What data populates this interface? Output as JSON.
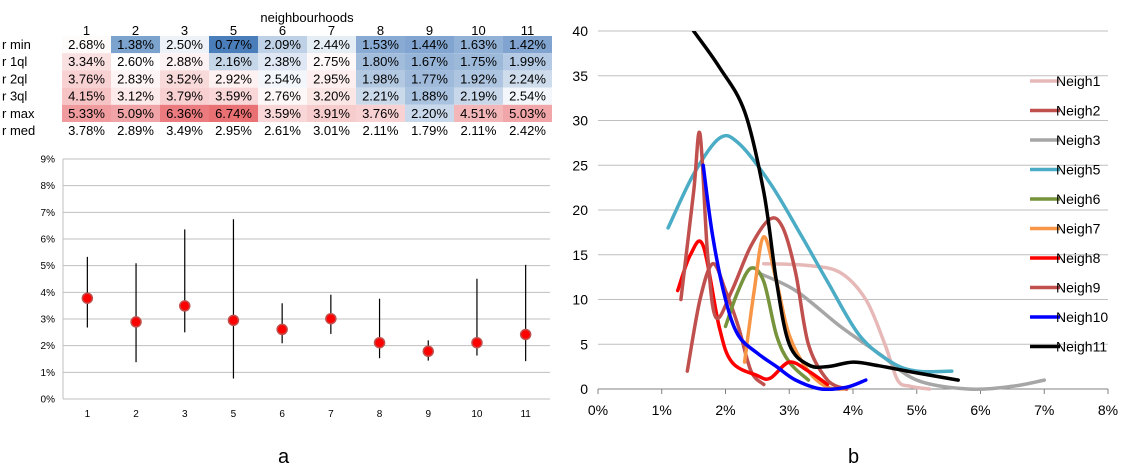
{
  "panel_labels": {
    "a": "a",
    "b": "b"
  },
  "chart_data": [
    {
      "type": "table",
      "title": "neighbourhoods",
      "columns": [
        "1",
        "2",
        "3",
        "5",
        "6",
        "7",
        "8",
        "9",
        "10",
        "11"
      ],
      "rows": [
        {
          "label": "r min",
          "values": [
            2.68,
            1.38,
            2.5,
            0.77,
            2.09,
            2.44,
            1.53,
            1.44,
            1.63,
            1.42
          ]
        },
        {
          "label": "r 1ql",
          "values": [
            3.34,
            2.6,
            2.88,
            2.16,
            2.38,
            2.75,
            1.8,
            1.67,
            1.75,
            1.99
          ]
        },
        {
          "label": "r 2ql",
          "values": [
            3.76,
            2.83,
            3.52,
            2.92,
            2.54,
            2.95,
            1.98,
            1.77,
            1.92,
            2.24
          ]
        },
        {
          "label": "r 3ql",
          "values": [
            4.15,
            3.12,
            3.79,
            3.59,
            2.76,
            3.2,
            2.21,
            1.88,
            2.19,
            2.54
          ]
        },
        {
          "label": "r max",
          "values": [
            5.33,
            5.09,
            6.36,
            6.74,
            3.59,
            3.91,
            3.76,
            2.2,
            4.51,
            5.03
          ]
        },
        {
          "label": "r med",
          "values": [
            3.78,
            2.89,
            3.49,
            2.95,
            2.61,
            3.01,
            2.11,
            1.79,
            2.11,
            2.42
          ]
        }
      ],
      "value_suffix": "%",
      "colors": {
        "low": "#4a7ebb",
        "high": "#e8686c",
        "neutral": "#ffffff"
      }
    },
    {
      "type": "scatter",
      "subtype": "range-dot",
      "categories": [
        "1",
        "2",
        "3",
        "5",
        "6",
        "7",
        "8",
        "9",
        "10",
        "11"
      ],
      "min": [
        2.68,
        1.38,
        2.5,
        0.77,
        2.09,
        2.44,
        1.53,
        1.44,
        1.63,
        1.42
      ],
      "max": [
        5.33,
        5.09,
        6.36,
        6.74,
        3.59,
        3.91,
        3.76,
        2.2,
        4.51,
        5.03
      ],
      "median": [
        3.78,
        2.89,
        3.49,
        2.95,
        2.61,
        3.01,
        2.11,
        1.79,
        2.11,
        2.42
      ],
      "ylim": [
        0,
        9
      ],
      "yticks": [
        "0%",
        "1%",
        "2%",
        "3%",
        "4%",
        "5%",
        "6%",
        "7%",
        "8%",
        "9%"
      ],
      "grid": true,
      "colors": {
        "dot": "#ff0000",
        "dot_edge": "#c0504d",
        "whisker": "#000000",
        "grid": "#bfbfbf"
      }
    },
    {
      "type": "line",
      "xlim": [
        0,
        8
      ],
      "ylim": [
        0,
        40
      ],
      "xticks": [
        "0%",
        "1%",
        "2%",
        "3%",
        "4%",
        "5%",
        "6%",
        "7%",
        "8%"
      ],
      "yticks": [
        "0",
        "5",
        "10",
        "15",
        "20",
        "25",
        "30",
        "35",
        "40"
      ],
      "grid": true,
      "legend": "right",
      "series": [
        {
          "name": "Neigh1",
          "color": "#e6b9b8",
          "points": [
            [
              2.6,
              14
            ],
            [
              3.3,
              13.8
            ],
            [
              3.8,
              13
            ],
            [
              4.2,
              10
            ],
            [
              4.5,
              5
            ],
            [
              4.7,
              1
            ],
            [
              4.9,
              0.3
            ],
            [
              5.2,
              0
            ]
          ]
        },
        {
          "name": "Neigh2",
          "color": "#c0504d",
          "points": [
            [
              1.4,
              2
            ],
            [
              1.6,
              10
            ],
            [
              1.8,
              14
            ],
            [
              2.0,
              11
            ],
            [
              2.2,
              7
            ],
            [
              2.4,
              2
            ],
            [
              2.6,
              0.5
            ]
          ]
        },
        {
          "name": "Neigh3",
          "color": "#a6a6a6",
          "points": [
            [
              2.5,
              13
            ],
            [
              3.1,
              11
            ],
            [
              3.8,
              7
            ],
            [
              4.4,
              4
            ],
            [
              5.0,
              1
            ],
            [
              5.8,
              0
            ],
            [
              6.5,
              0.3
            ],
            [
              7.0,
              1
            ]
          ]
        },
        {
          "name": "Neigh5",
          "color": "#4bacc6",
          "points": [
            [
              1.1,
              18
            ],
            [
              1.5,
              24
            ],
            [
              1.9,
              28
            ],
            [
              2.2,
              27.5
            ],
            [
              2.7,
              23
            ],
            [
              3.2,
              17
            ],
            [
              3.6,
              12
            ],
            [
              4.1,
              6
            ],
            [
              4.6,
              3
            ],
            [
              5.0,
              2
            ],
            [
              5.55,
              2
            ]
          ]
        },
        {
          "name": "Neigh6",
          "color": "#77933c",
          "points": [
            [
              2.0,
              7
            ],
            [
              2.2,
              11
            ],
            [
              2.4,
              13.5
            ],
            [
              2.6,
              12
            ],
            [
              2.8,
              6
            ],
            [
              3.0,
              3
            ],
            [
              3.3,
              1
            ]
          ]
        },
        {
          "name": "Neigh7",
          "color": "#f79646",
          "points": [
            [
              2.3,
              3
            ],
            [
              2.45,
              11
            ],
            [
              2.6,
              17
            ],
            [
              2.8,
              12
            ],
            [
              3.0,
              6
            ],
            [
              3.3,
              2
            ],
            [
              3.6,
              0.2
            ],
            [
              3.9,
              0
            ]
          ]
        },
        {
          "name": "Neigh8",
          "color": "#ff0000",
          "points": [
            [
              1.25,
              11
            ],
            [
              1.45,
              15
            ],
            [
              1.65,
              16
            ],
            [
              1.9,
              7
            ],
            [
              2.1,
              3
            ],
            [
              2.5,
              1.5
            ],
            [
              2.7,
              1.2
            ],
            [
              3.0,
              3
            ],
            [
              3.3,
              2
            ],
            [
              3.6,
              0.5
            ]
          ]
        },
        {
          "name": "Neigh9",
          "color": "#c0504d",
          "points": [
            [
              1.3,
              10
            ],
            [
              1.5,
              22
            ],
            [
              1.6,
              28.5
            ],
            [
              1.72,
              15
            ],
            [
              1.85,
              8
            ],
            [
              2.1,
              11
            ],
            [
              2.4,
              16
            ],
            [
              2.7,
              19
            ],
            [
              2.9,
              18
            ],
            [
              3.1,
              13
            ],
            [
              3.3,
              5
            ],
            [
              3.6,
              1
            ],
            [
              3.9,
              0
            ]
          ]
        },
        {
          "name": "Neigh10",
          "color": "#0000ff",
          "points": [
            [
              1.65,
              25
            ],
            [
              1.8,
              17
            ],
            [
              2.0,
              10
            ],
            [
              2.2,
              6
            ],
            [
              2.5,
              4
            ],
            [
              2.8,
              2.5
            ],
            [
              3.1,
              1
            ],
            [
              3.5,
              0
            ],
            [
              3.9,
              0.2
            ],
            [
              4.2,
              1
            ]
          ]
        },
        {
          "name": "Neigh11",
          "color": "#000000",
          "points": [
            [
              1.5,
              40
            ],
            [
              1.9,
              36
            ],
            [
              2.3,
              31
            ],
            [
              2.6,
              22
            ],
            [
              2.8,
              12
            ],
            [
              3.0,
              5
            ],
            [
              3.3,
              2.7
            ],
            [
              3.6,
              2.5
            ],
            [
              4.0,
              3
            ],
            [
              4.4,
              2.6
            ],
            [
              5.0,
              1.8
            ],
            [
              5.65,
              1
            ]
          ]
        }
      ]
    }
  ]
}
